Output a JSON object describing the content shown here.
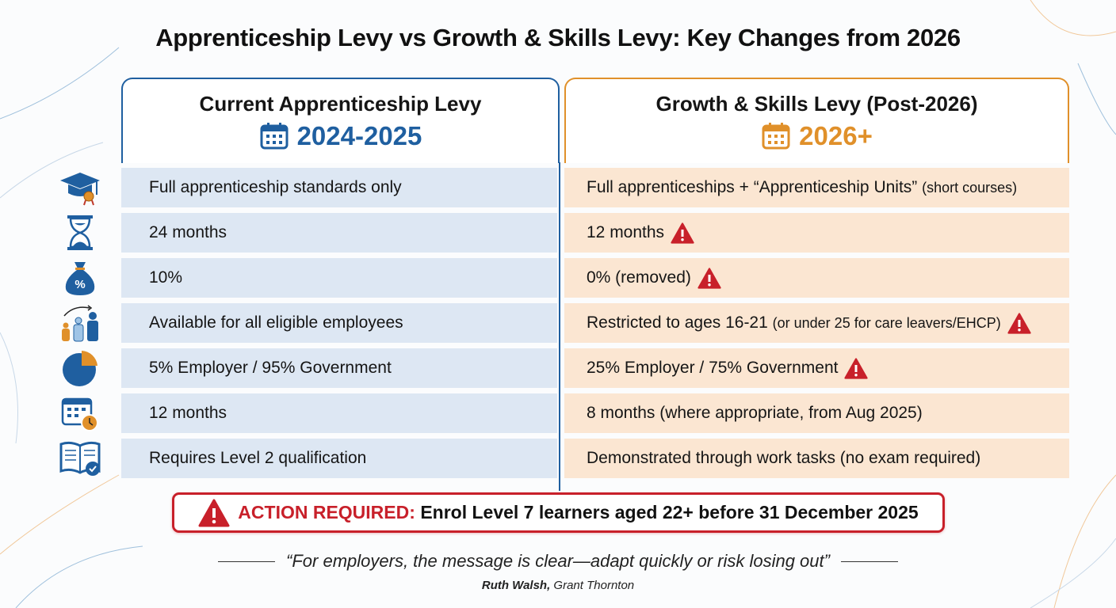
{
  "title": "Apprenticeship Levy vs Growth & Skills Levy: Key Changes from 2026",
  "colors": {
    "current": "#1f5fa0",
    "future": "#e0902a",
    "alert": "#c8202a",
    "current_row": "#dde7f3",
    "future_row": "#fbe6d2"
  },
  "current": {
    "heading": "Current Apprenticeship Levy",
    "period": "2024-2025",
    "icon": "calendar-icon"
  },
  "future": {
    "heading": "Growth & Skills Levy (Post-2026)",
    "period": "2026+",
    "icon": "calendar-icon"
  },
  "rows": [
    {
      "icon": "graduation-cap-icon",
      "current": "Full apprenticeship standards only",
      "future": "Full apprenticeships + “Apprenticeship Units”",
      "future_note": "(short courses)",
      "warning": false
    },
    {
      "icon": "hourglass-icon",
      "current": "24 months",
      "future": "12 months",
      "future_note": "",
      "warning": true
    },
    {
      "icon": "money-bag-percent-icon",
      "current": "10%",
      "future": "0% (removed)",
      "future_note": "",
      "warning": true
    },
    {
      "icon": "people-age-icon",
      "current": "Available for all eligible employees",
      "future": "Restricted to ages 16-21",
      "future_note": "(or under 25 for care leavers/EHCP)",
      "warning": true
    },
    {
      "icon": "pie-chart-icon",
      "current": "5% Employer / 95% Government",
      "future": "25% Employer / 75% Government",
      "future_note": "",
      "warning": true
    },
    {
      "icon": "calendar-clock-icon",
      "current": "12 months",
      "future": "8 months (where appropriate, from Aug 2025)",
      "future_note": "",
      "warning": false
    },
    {
      "icon": "book-check-icon",
      "current": "Requires Level 2 qualification",
      "future": "Demonstrated through work tasks (no exam required)",
      "future_note": "",
      "warning": false
    }
  ],
  "alert": {
    "icon": "warning-icon",
    "label": "ACTION REQUIRED:",
    "text": "Enrol Level 7 learners aged 22+ before 31 December 2025"
  },
  "quote": {
    "text": "“For employers, the message is clear—adapt quickly or risk losing out”",
    "author": "Ruth Walsh,",
    "org": "Grant Thornton"
  }
}
